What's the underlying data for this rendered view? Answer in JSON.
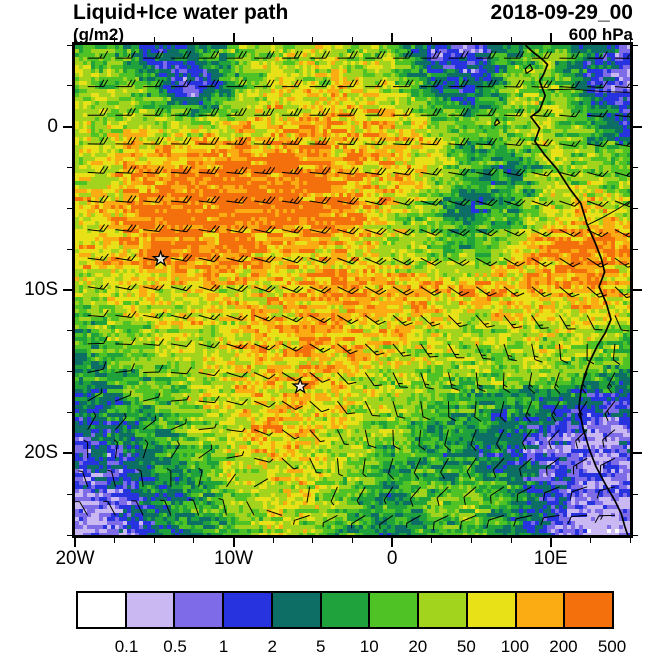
{
  "header": {
    "title": "Liquid+Ice water path",
    "units": "(g/m2)",
    "datetime": "2018-09-29_00",
    "level": "600 hPa"
  },
  "chart_data": {
    "type": "heatmap",
    "title": "Liquid+Ice water path",
    "field_units": "g/m2",
    "datetime": "2018-09-29_00",
    "level_hpa": 600,
    "projection": "lat-lon map, west African / South Atlantic sector",
    "lon_range": [
      -20,
      15
    ],
    "lat_range": [
      -25,
      5
    ],
    "grid": "off",
    "x_ticks": [
      {
        "value": -20,
        "label": "20W"
      },
      {
        "value": -10,
        "label": "10W"
      },
      {
        "value": 0,
        "label": "0"
      },
      {
        "value": 10,
        "label": "10E"
      }
    ],
    "y_ticks": [
      {
        "value": 0,
        "label": "0"
      },
      {
        "value": -10,
        "label": "10S"
      },
      {
        "value": -20,
        "label": "20S"
      }
    ],
    "minor_tick_step": 2.5,
    "colorbar": {
      "orientation": "horizontal",
      "levels": [
        0.1,
        0.5,
        1,
        2,
        5,
        10,
        20,
        50,
        100,
        200,
        500
      ],
      "labels": [
        "0.1",
        "0.5",
        "1",
        "2",
        "5",
        "10",
        "20",
        "50",
        "100",
        "200",
        "500"
      ],
      "colors": [
        "#FFFFFF",
        "#C9B8F2",
        "#7E6BE8",
        "#2633DE",
        "#0D6E66",
        "#1FA23C",
        "#4FC326",
        "#A2D41E",
        "#E8E118",
        "#FBAC12",
        "#F4700D"
      ]
    },
    "field": {
      "name": "liquid+ice water path",
      "units": "g/m2",
      "grid_lons": [
        -20,
        -17.5,
        -15,
        -12.5,
        -10,
        -7.5,
        -5,
        -2.5,
        0,
        2.5,
        5,
        7.5,
        10,
        12.5,
        15
      ],
      "grid_lats": [
        5,
        2.5,
        0,
        -2.5,
        -5,
        -7.5,
        -10,
        -12.5,
        -15,
        -17.5,
        -20,
        -22.5,
        -25
      ],
      "values": [
        [
          20,
          10,
          1,
          5,
          20,
          30,
          40,
          30,
          20,
          1,
          0.5,
          10,
          20,
          3,
          1
        ],
        [
          30,
          30,
          10,
          0.5,
          10,
          40,
          60,
          60,
          40,
          5,
          2,
          20,
          30,
          2,
          0.8
        ],
        [
          30,
          40,
          50,
          40,
          60,
          80,
          120,
          120,
          80,
          40,
          10,
          30,
          40,
          10,
          2
        ],
        [
          50,
          80,
          150,
          250,
          300,
          300,
          250,
          150,
          100,
          50,
          10,
          5,
          30,
          30,
          10
        ],
        [
          80,
          120,
          250,
          300,
          300,
          300,
          300,
          250,
          60,
          20,
          3,
          8,
          40,
          80,
          40
        ],
        [
          80,
          150,
          300,
          300,
          250,
          150,
          120,
          80,
          30,
          20,
          8,
          40,
          200,
          300,
          120
        ],
        [
          30,
          50,
          70,
          70,
          60,
          80,
          120,
          150,
          150,
          150,
          150,
          150,
          150,
          120,
          60
        ],
        [
          10,
          20,
          40,
          50,
          80,
          120,
          150,
          120,
          80,
          40,
          30,
          40,
          50,
          40,
          20
        ],
        [
          5,
          10,
          20,
          30,
          60,
          100,
          100,
          80,
          40,
          30,
          25,
          30,
          25,
          15,
          8
        ],
        [
          2,
          5,
          10,
          30,
          60,
          120,
          100,
          50,
          30,
          15,
          8,
          4,
          2,
          1,
          1
        ],
        [
          1,
          2,
          5,
          15,
          40,
          90,
          60,
          25,
          10,
          6,
          4,
          2,
          1,
          0.5,
          0.5
        ],
        [
          0.5,
          1,
          3,
          8,
          25,
          60,
          40,
          15,
          6,
          15,
          25,
          8,
          2,
          0.5,
          0.5
        ],
        [
          0.3,
          0.5,
          2,
          5,
          15,
          30,
          25,
          10,
          4,
          10,
          15,
          5,
          1,
          0.3,
          0.3
        ]
      ]
    },
    "wind": {
      "units": "m/s",
      "barb_spacing_deg": 1.75,
      "grid_lons": [
        -20,
        -15,
        -10,
        -5,
        0,
        5,
        10,
        15
      ],
      "grid_lats": [
        5,
        0,
        -5,
        -10,
        -15,
        -20,
        -25
      ],
      "u": [
        [
          -8,
          -9,
          -10,
          -10,
          -10,
          -10,
          -9,
          -8
        ],
        [
          -10,
          -11,
          -12,
          -12,
          -11,
          -10,
          -9,
          -8
        ],
        [
          -10,
          -11,
          -12,
          -11,
          -10,
          -9,
          -8,
          -7
        ],
        [
          -7,
          -8,
          -9,
          -9,
          -8,
          -7,
          -6,
          -5
        ],
        [
          -4,
          -5,
          -6,
          -5,
          -3,
          -1,
          2,
          4
        ],
        [
          0,
          -1,
          -2,
          -1,
          1,
          3,
          5,
          6
        ],
        [
          3,
          2,
          1,
          2,
          3,
          5,
          6,
          7
        ]
      ],
      "v": [
        [
          0,
          0,
          0,
          0,
          0,
          0,
          0,
          0
        ],
        [
          0,
          0,
          0,
          0,
          0,
          0,
          1,
          1
        ],
        [
          1,
          1,
          2,
          2,
          3,
          3,
          3,
          3
        ],
        [
          1,
          2,
          3,
          4,
          5,
          5,
          5,
          5
        ],
        [
          -1,
          0,
          2,
          4,
          6,
          7,
          7,
          7
        ],
        [
          -3,
          -2,
          0,
          2,
          4,
          5,
          4,
          3
        ],
        [
          -4,
          -3,
          -2,
          0,
          1,
          1,
          0,
          -1
        ]
      ]
    },
    "markers": [
      {
        "type": "star",
        "lon": -14.6,
        "lat": -8.1
      },
      {
        "type": "star",
        "lon": -5.8,
        "lat": -15.9
      }
    ],
    "coastline": [
      [
        8.4,
        5.0
      ],
      [
        8.9,
        4.55
      ],
      [
        9.5,
        4.1
      ],
      [
        9.8,
        3.8
      ],
      [
        9.55,
        3.2
      ],
      [
        9.3,
        2.8
      ],
      [
        9.65,
        1.9
      ],
      [
        9.3,
        1.0
      ],
      [
        8.75,
        0.6
      ],
      [
        9.3,
        -0.1
      ],
      [
        9.0,
        -0.9
      ],
      [
        9.6,
        -1.7
      ],
      [
        10.4,
        -2.6
      ],
      [
        11.2,
        -3.8
      ],
      [
        11.9,
        -4.7
      ],
      [
        12.3,
        -6.0
      ],
      [
        12.8,
        -7.1
      ],
      [
        13.2,
        -8.1
      ],
      [
        13.4,
        -8.9
      ],
      [
        13.05,
        -9.8
      ],
      [
        13.5,
        -10.8
      ],
      [
        13.8,
        -11.8
      ],
      [
        13.45,
        -12.6
      ],
      [
        12.95,
        -13.4
      ],
      [
        12.5,
        -14.3
      ],
      [
        12.15,
        -15.2
      ],
      [
        11.9,
        -16.2
      ],
      [
        11.78,
        -17.2
      ],
      [
        12.05,
        -18.5
      ],
      [
        12.45,
        -19.8
      ],
      [
        12.85,
        -20.8
      ],
      [
        13.45,
        -21.9
      ],
      [
        14.05,
        -22.9
      ],
      [
        14.45,
        -23.7
      ],
      [
        14.65,
        -24.4
      ],
      [
        14.85,
        -25.0
      ]
    ],
    "islands": [
      [
        [
          8.45,
          3.25
        ],
        [
          8.85,
          3.5
        ],
        [
          8.7,
          3.8
        ],
        [
          8.4,
          3.55
        ],
        [
          8.45,
          3.25
        ]
      ],
      [
        [
          6.5,
          0.05
        ],
        [
          6.78,
          0.25
        ],
        [
          6.62,
          0.45
        ],
        [
          6.47,
          0.22
        ],
        [
          6.5,
          0.05
        ]
      ]
    ],
    "inland_lines": [
      [
        [
          12.35,
          -6.0
        ],
        [
          13.3,
          -5.55
        ],
        [
          14.3,
          -5.0
        ],
        [
          15.0,
          -4.55
        ]
      ],
      [
        [
          9.8,
          2.25
        ],
        [
          11.4,
          2.3
        ],
        [
          13.2,
          2.15
        ],
        [
          15.0,
          2.1
        ]
      ]
    ]
  }
}
